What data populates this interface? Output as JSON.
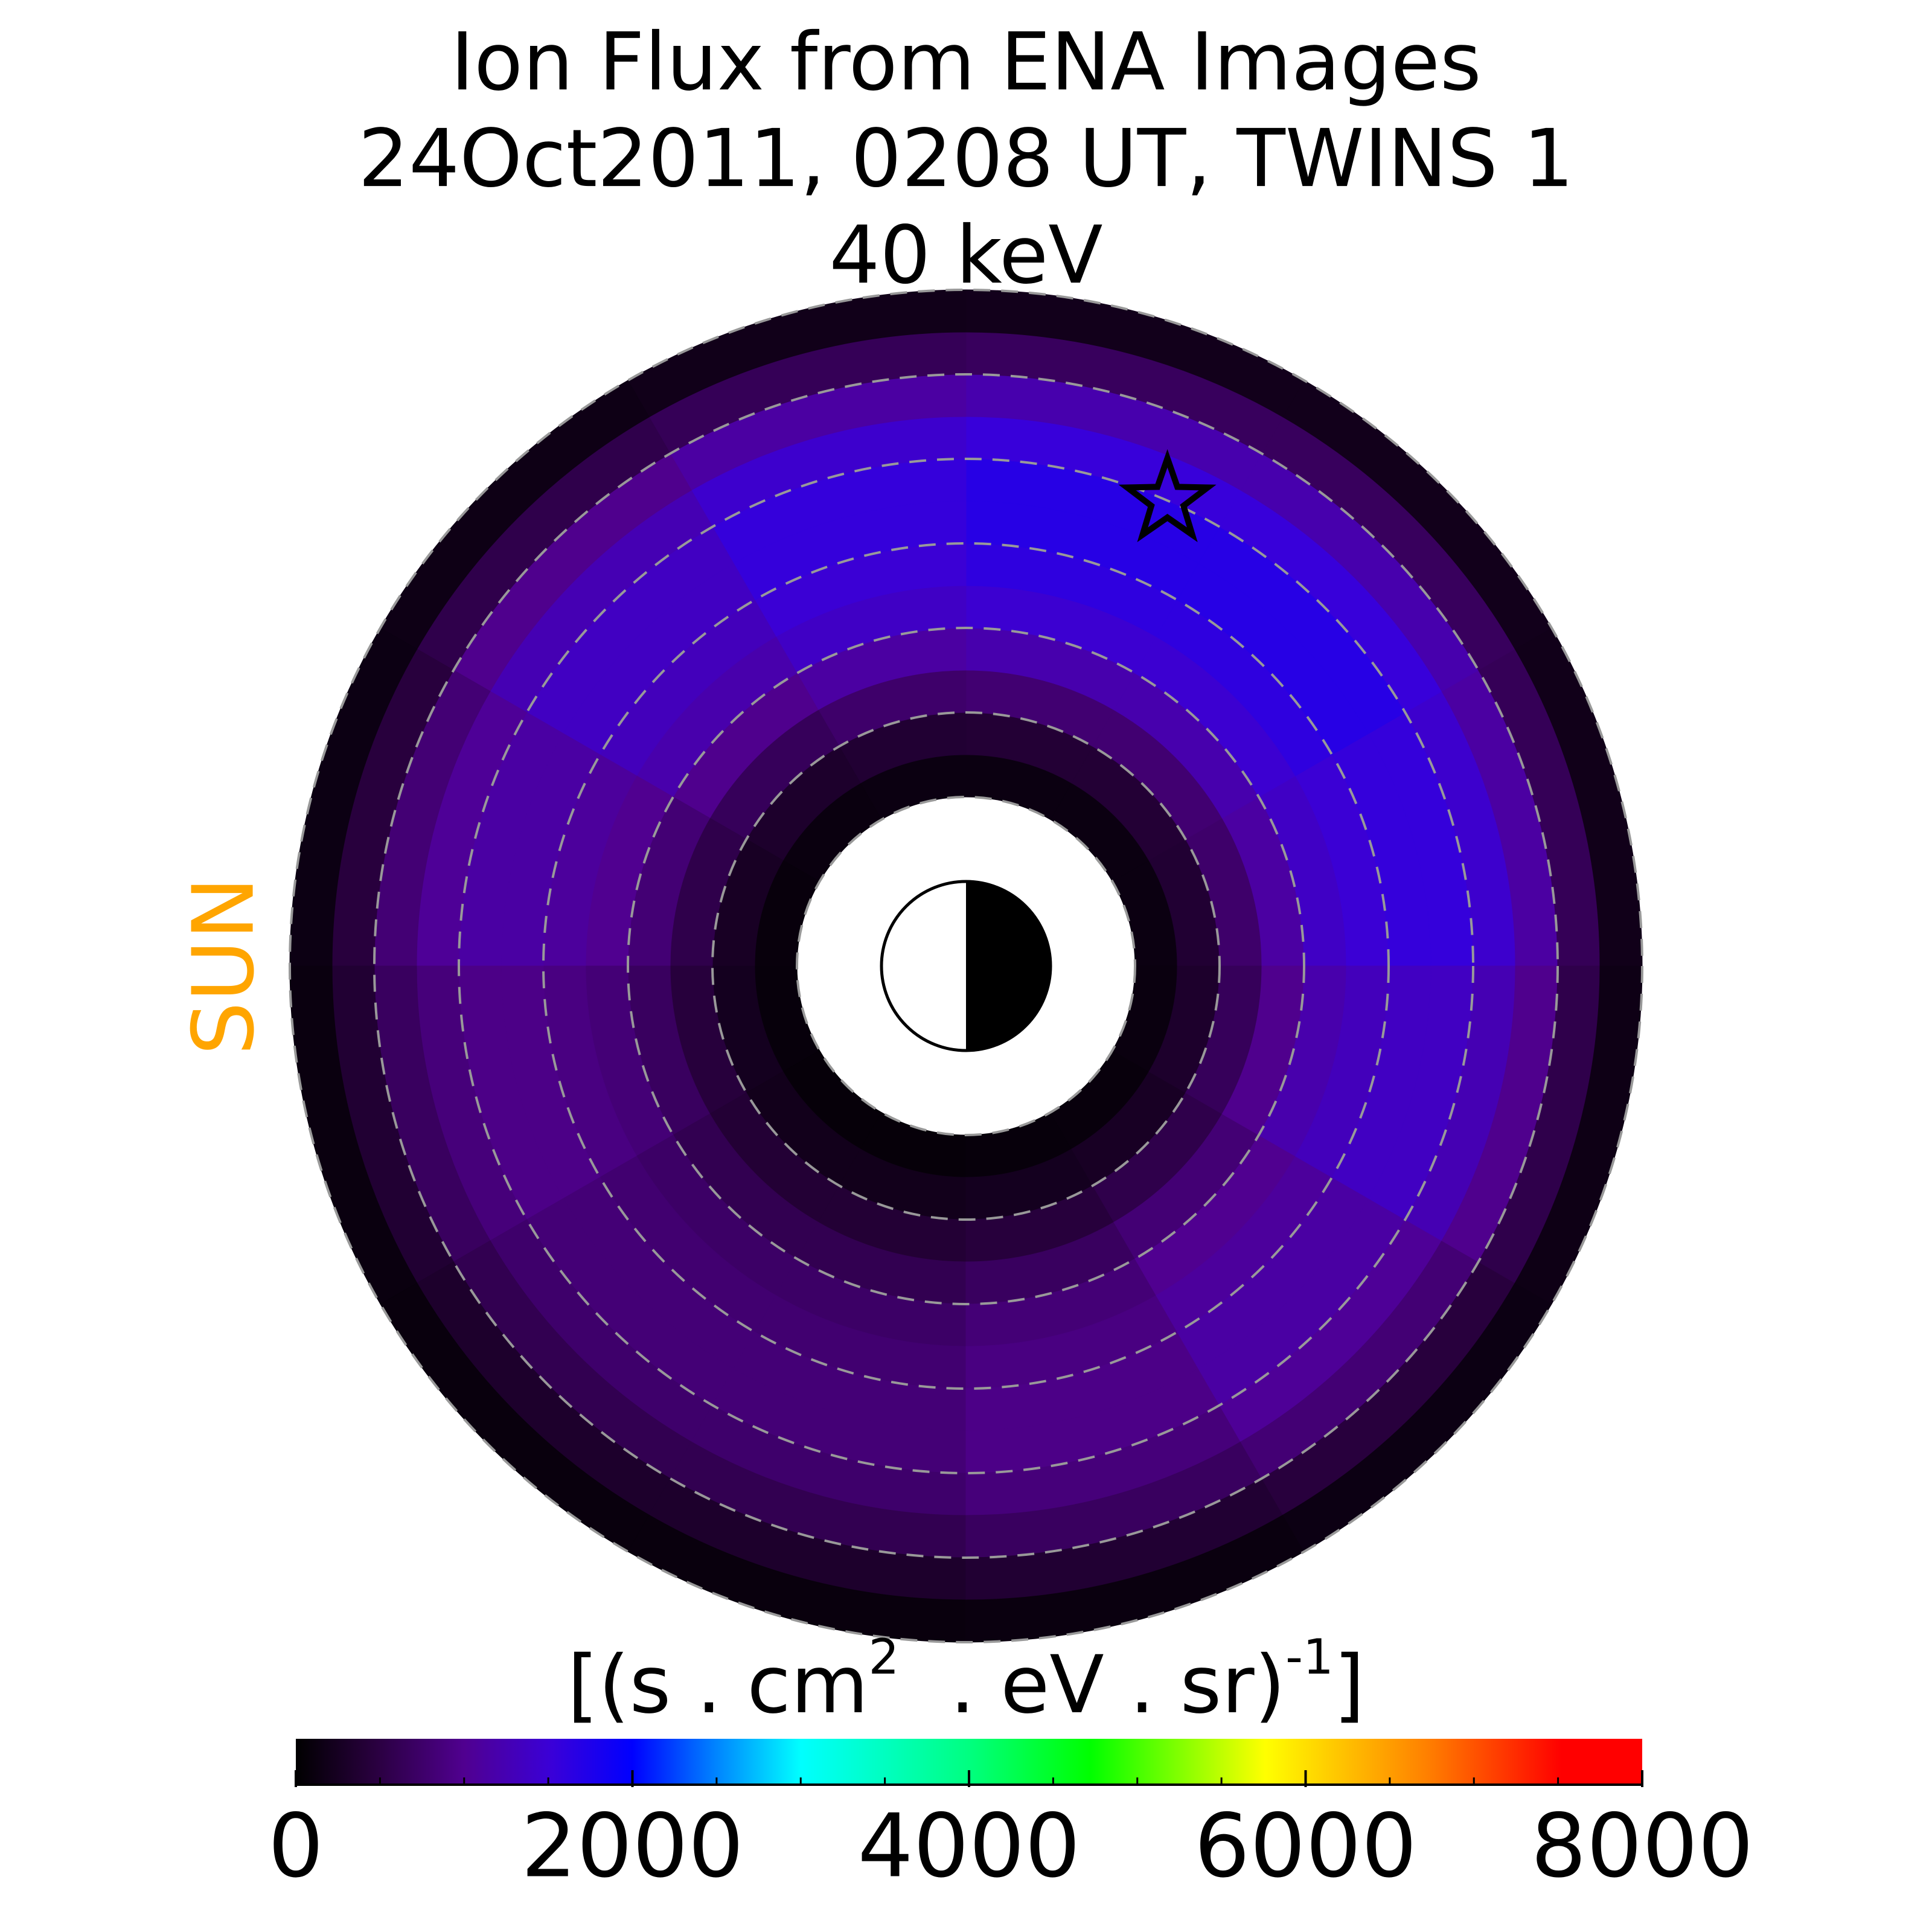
{
  "chart_data": {
    "type": "polar_heatmap",
    "title": [
      "Ion Flux from  ENA Images",
      "24Oct2011, 0208 UT,  TWINS 1",
      "40 keV"
    ],
    "r_edges": [
      2,
      2.5,
      3,
      3.5,
      4,
      4.5,
      5,
      5.5,
      6,
      6.5,
      7,
      7.5,
      8
    ],
    "theta_edges": [
      0,
      30,
      60,
      90,
      120,
      150,
      180,
      210,
      240,
      270,
      300,
      330,
      360
    ],
    "values": [
      [
        130,
        130,
        130,
        130,
        110,
        90,
        80,
        70,
        70,
        80,
        90,
        110
      ],
      [
        380,
        400,
        400,
        380,
        330,
        270,
        230,
        200,
        200,
        230,
        270,
        330
      ],
      [
        750,
        800,
        800,
        750,
        650,
        550,
        450,
        400,
        400,
        450,
        550,
        650
      ],
      [
        1130,
        1210,
        1210,
        1130,
        980,
        820,
        680,
        590,
        590,
        680,
        820,
        980
      ],
      [
        1380,
        1470,
        1470,
        1380,
        1200,
        1000,
        830,
        730,
        730,
        830,
        1000,
        1200
      ],
      [
        1500,
        1610,
        1610,
        1500,
        1310,
        1090,
        900,
        790,
        790,
        900,
        1090,
        1310
      ],
      [
        1560,
        1680,
        1680,
        1560,
        1360,
        1140,
        940,
        830,
        830,
        940,
        1140,
        1360
      ],
      [
        1560,
        1680,
        1680,
        1560,
        1360,
        1140,
        940,
        830,
        830,
        940,
        1140,
        1360
      ],
      [
        1440,
        1540,
        1540,
        1440,
        1250,
        1050,
        860,
        760,
        760,
        860,
        1050,
        1250
      ],
      [
        1130,
        1210,
        1210,
        1130,
        980,
        820,
        680,
        590,
        590,
        680,
        820,
        980
      ],
      [
        630,
        670,
        670,
        630,
        550,
        460,
        380,
        330,
        330,
        380,
        460,
        550
      ],
      [
        190,
        200,
        200,
        190,
        160,
        140,
        110,
        100,
        100,
        110,
        140,
        160
      ]
    ],
    "rlim": [
      0,
      8
    ],
    "rgrid": [
      2,
      3,
      4,
      5,
      6,
      7,
      8
    ],
    "earth_radius": 1,
    "sun_label": "SUN",
    "sun_color": "#ffa500",
    "marker": {
      "r": 6.0,
      "theta": 66.6
    },
    "colorbar": {
      "label_parts": [
        "[(s . cm",
        "2",
        "  . eV . sr)",
        "-1",
        "]"
      ],
      "lim": [
        0,
        8000
      ],
      "ticks": [
        0,
        2000,
        4000,
        6000,
        8000
      ],
      "minor_ticks": [
        500,
        1000,
        1500,
        2500,
        3000,
        3500,
        4500,
        5000,
        5500,
        6500,
        7000,
        7500
      ],
      "colormap": [
        [
          0,
          "#000000"
        ],
        [
          0.06,
          "#2a0040"
        ],
        [
          0.125,
          "#500090"
        ],
        [
          0.19,
          "#3a00d8"
        ],
        [
          0.25,
          "#0000ff"
        ],
        [
          0.31,
          "#0080ff"
        ],
        [
          0.375,
          "#00ffff"
        ],
        [
          0.5,
          "#00ff80"
        ],
        [
          0.59,
          "#00ff00"
        ],
        [
          0.72,
          "#ffff00"
        ],
        [
          0.84,
          "#ff8000"
        ],
        [
          0.94,
          "#ff0000"
        ],
        [
          1,
          "#ff0000"
        ]
      ]
    }
  }
}
